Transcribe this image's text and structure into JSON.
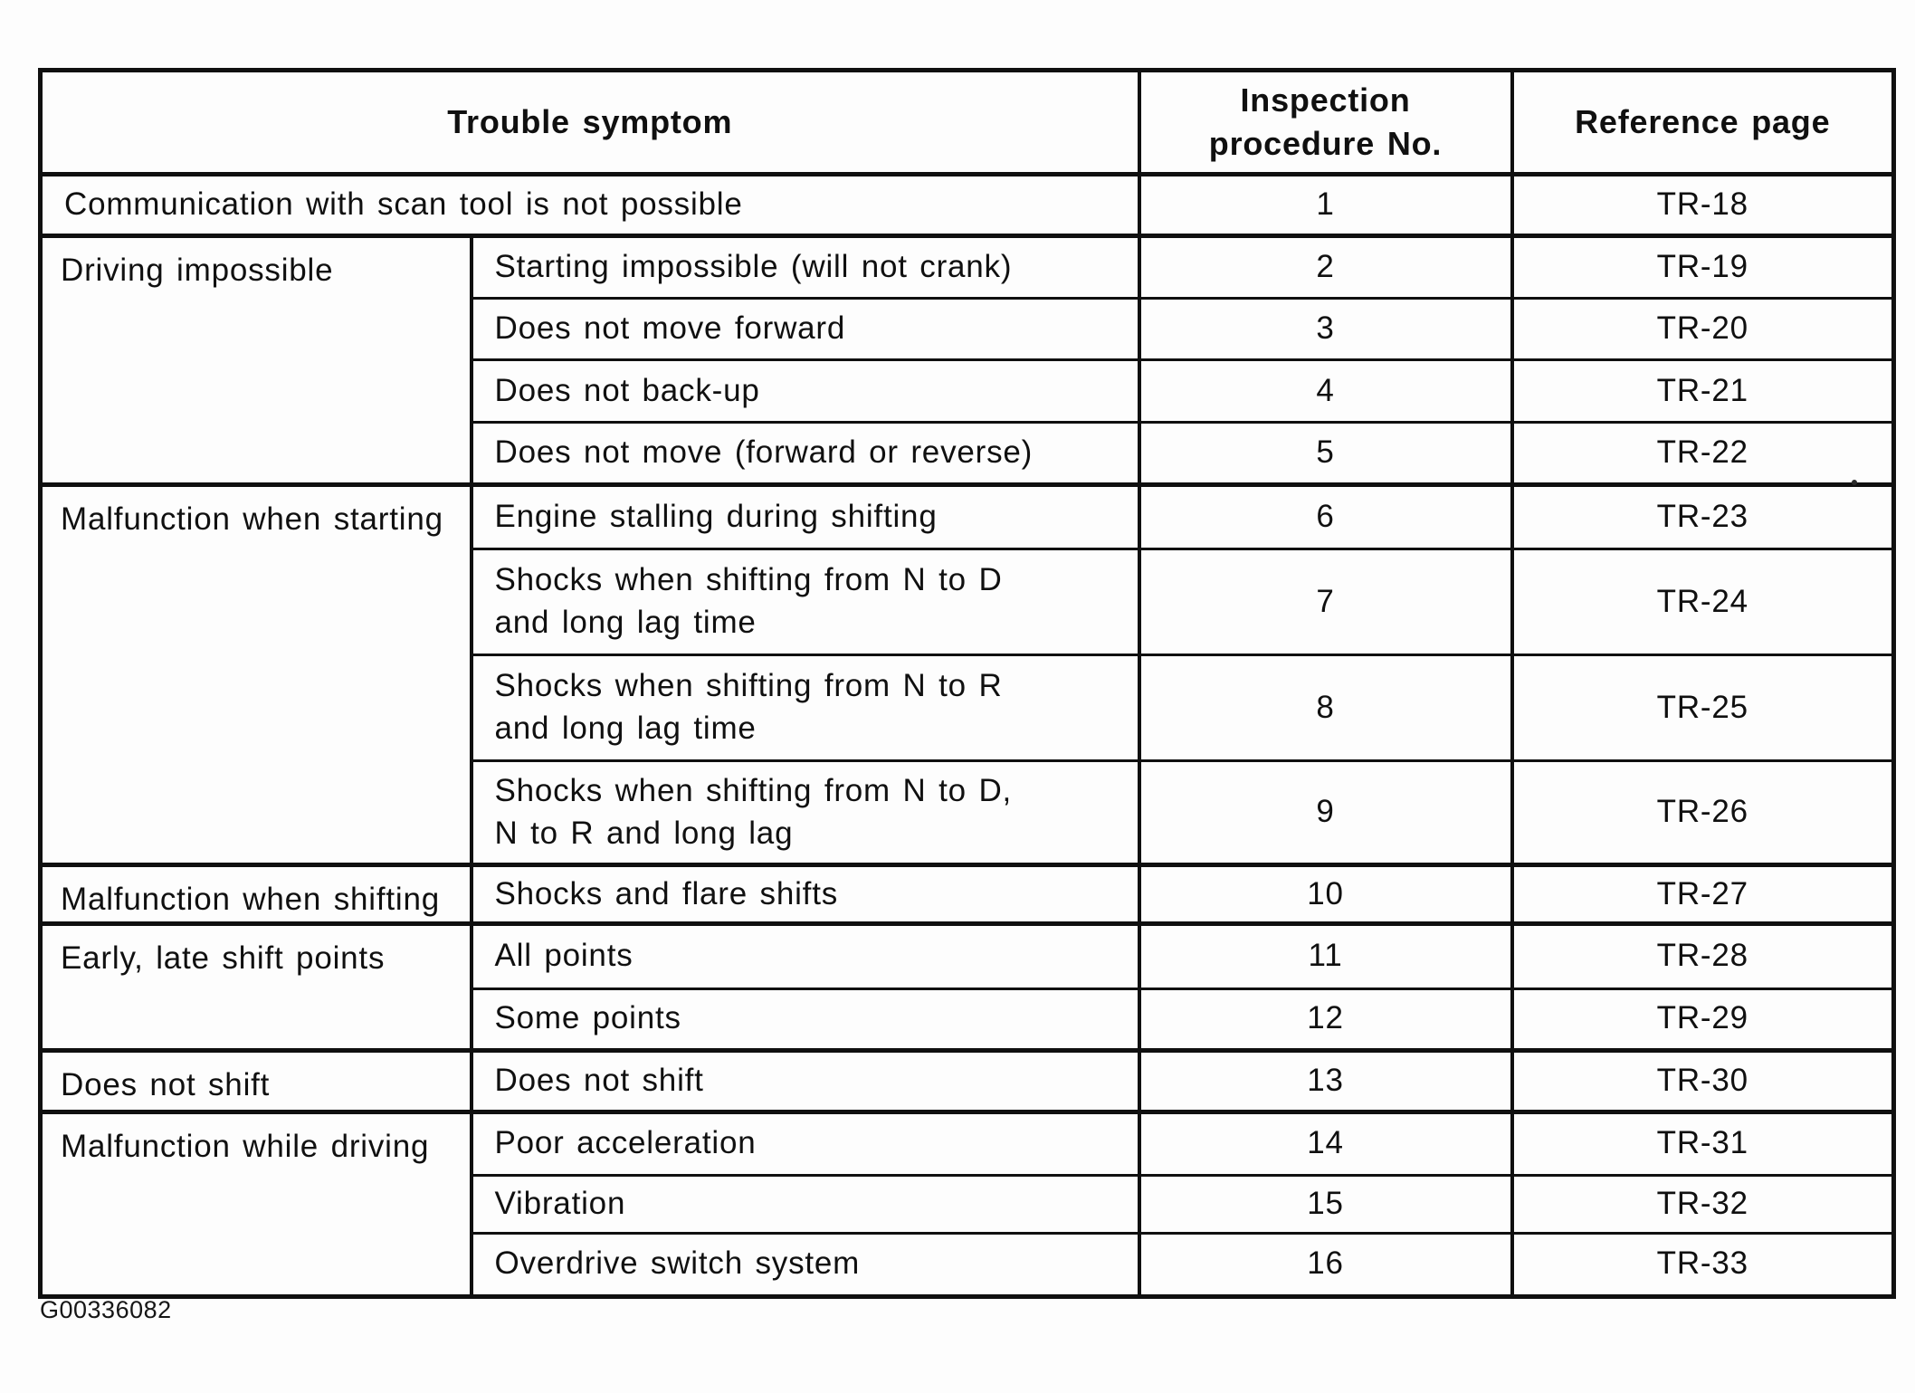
{
  "page": {
    "figure_code": "G00336082"
  },
  "table": {
    "header": {
      "trouble_symptom": "Trouble symptom",
      "inspection_procedure_no": "Inspection\nprocedure No.",
      "reference_page": "Reference page"
    },
    "rows": [
      {
        "symptom": "Communication with scan tool is not possible",
        "no": "1",
        "ref": "TR-18"
      },
      {
        "group": "Driving impossible",
        "symptom": "Starting impossible (will not crank)",
        "no": "2",
        "ref": "TR-19"
      },
      {
        "symptom": "Does not move forward",
        "no": "3",
        "ref": "TR-20"
      },
      {
        "symptom": "Does not back-up",
        "no": "4",
        "ref": "TR-21"
      },
      {
        "symptom": "Does not move (forward or reverse)",
        "no": "5",
        "ref": "TR-22"
      },
      {
        "group": "Malfunction when starting",
        "symptom": "Engine stalling during shifting",
        "no": "6",
        "ref": "TR-23"
      },
      {
        "symptom": "Shocks when shifting from N to D\nand long lag time",
        "no": "7",
        "ref": "TR-24"
      },
      {
        "symptom": "Shocks when shifting from N to R\nand long lag time",
        "no": "8",
        "ref": "TR-25"
      },
      {
        "symptom": "Shocks when shifting from N to D,\nN to R and long lag",
        "no": "9",
        "ref": "TR-26"
      },
      {
        "group": "Malfunction when shifting",
        "symptom": "Shocks and flare shifts",
        "no": "10",
        "ref": "TR-27"
      },
      {
        "group": "Early, late shift points",
        "symptom": "All points",
        "no": "11",
        "ref": "TR-28"
      },
      {
        "symptom": "Some points",
        "no": "12",
        "ref": "TR-29"
      },
      {
        "group": "Does not shift",
        "symptom": "Does not shift",
        "no": "13",
        "ref": "TR-30"
      },
      {
        "group": "Malfunction while driving",
        "symptom": "Poor acceleration",
        "no": "14",
        "ref": "TR-31"
      },
      {
        "symptom": "Vibration",
        "no": "15",
        "ref": "TR-32"
      },
      {
        "symptom": "Overdrive switch system",
        "no": "16",
        "ref": "TR-33"
      }
    ]
  }
}
